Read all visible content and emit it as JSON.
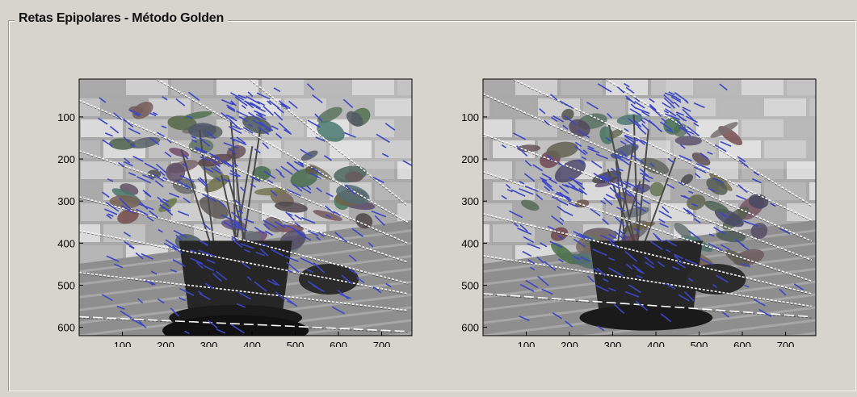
{
  "panel": {
    "title": "Retas Epipolares - Método Golden"
  },
  "plots": [
    {
      "xticks": [
        "100",
        "200",
        "300",
        "400",
        "500",
        "600",
        "700"
      ],
      "yticks": [
        "100",
        "200",
        "300",
        "400",
        "500",
        "600"
      ]
    },
    {
      "xticks": [
        "100",
        "200",
        "300",
        "400",
        "500",
        "600",
        "700"
      ],
      "yticks": [
        "100",
        "200",
        "300",
        "400",
        "500",
        "600"
      ]
    }
  ],
  "chart_data": [
    {
      "type": "scatter",
      "xlim": [
        0,
        770
      ],
      "ylim": [
        620,
        10
      ],
      "xticks": [
        100,
        200,
        300,
        400,
        500,
        600,
        700
      ],
      "yticks": [
        100,
        200,
        300,
        400,
        500,
        600
      ],
      "grid": false,
      "epipolar_lines": [
        [
          [
            395,
            10
          ],
          [
            760,
            310
          ]
        ],
        [
          [
            180,
            10
          ],
          [
            760,
            350
          ]
        ],
        [
          [
            0,
            60
          ],
          [
            760,
            400
          ]
        ],
        [
          [
            0,
            180
          ],
          [
            760,
            445
          ]
        ],
        [
          [
            0,
            290
          ],
          [
            760,
            495
          ]
        ],
        [
          [
            0,
            370
          ],
          [
            760,
            520
          ]
        ],
        [
          [
            0,
            470
          ],
          [
            760,
            560
          ]
        ],
        [
          [
            0,
            575
          ],
          [
            760,
            610
          ]
        ]
      ],
      "flow_color": "#3b46c8",
      "line_color": "#ffffff"
    },
    {
      "type": "scatter",
      "xlim": [
        0,
        770
      ],
      "ylim": [
        620,
        10
      ],
      "xticks": [
        100,
        200,
        300,
        400,
        500,
        600,
        700
      ],
      "yticks": [
        100,
        200,
        300,
        400,
        500,
        600
      ],
      "grid": false,
      "epipolar_lines": [
        [
          [
            285,
            10
          ],
          [
            760,
            310
          ]
        ],
        [
          [
            70,
            10
          ],
          [
            760,
            345
          ]
        ],
        [
          [
            0,
            45
          ],
          [
            760,
            395
          ]
        ],
        [
          [
            0,
            140
          ],
          [
            760,
            440
          ]
        ],
        [
          [
            0,
            230
          ],
          [
            760,
            490
          ]
        ],
        [
          [
            0,
            330
          ],
          [
            760,
            520
          ]
        ],
        [
          [
            0,
            430
          ],
          [
            760,
            550
          ]
        ],
        [
          [
            0,
            520
          ],
          [
            760,
            575
          ]
        ]
      ],
      "flow_color": "#3b46c8",
      "line_color": "#ffffff"
    }
  ]
}
